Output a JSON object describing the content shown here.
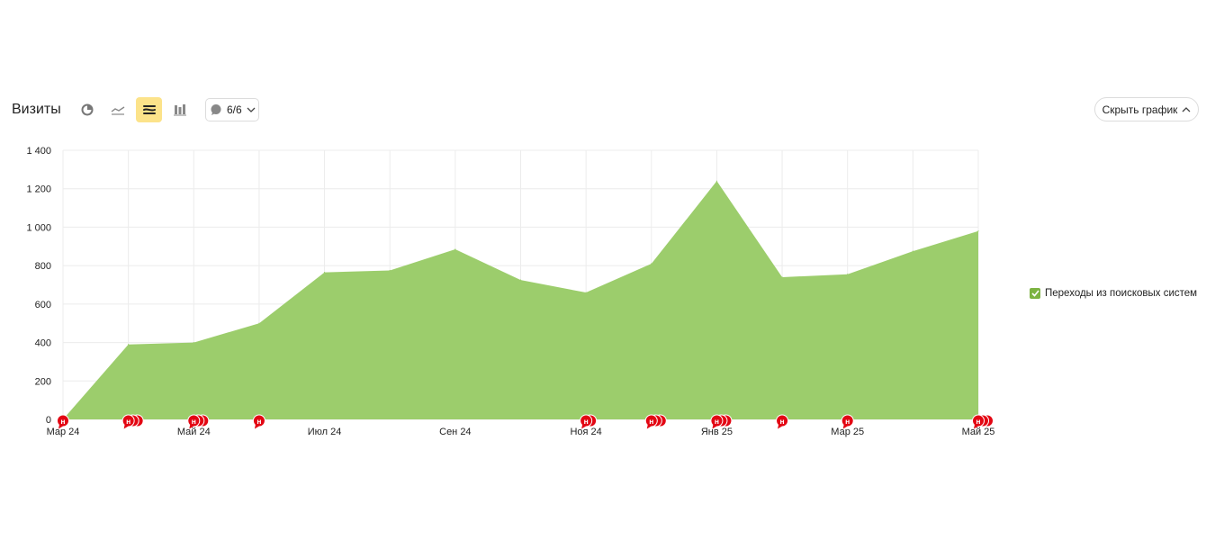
{
  "header": {
    "title": "Визиты",
    "notes_count": "6/6",
    "hide_chart_label": "Скрыть график"
  },
  "toolbar_buttons": [
    {
      "name": "pie-chart-icon",
      "active": false
    },
    {
      "name": "line-chart-icon",
      "active": false
    },
    {
      "name": "area-chart-icon",
      "active": true
    },
    {
      "name": "bar-chart-icon",
      "active": false
    }
  ],
  "colors": {
    "area": "#9ccd6c",
    "accent_active": "#fce38a",
    "marker": "#e30613",
    "legend_check": "#7cb342"
  },
  "chart_data": {
    "type": "area",
    "x": [
      "2024-03",
      "2024-04",
      "2024-05",
      "2024-06",
      "2024-07",
      "2024-08",
      "2024-09",
      "2024-10",
      "2024-11",
      "2024-12",
      "2025-01",
      "2025-02",
      "2025-03",
      "2025-04",
      "2025-05"
    ],
    "x_tick_labels": [
      {
        "index": 0,
        "label": "Мар 24"
      },
      {
        "index": 2,
        "label": "Май 24"
      },
      {
        "index": 4,
        "label": "Июл 24"
      },
      {
        "index": 6,
        "label": "Сен 24"
      },
      {
        "index": 8,
        "label": "Ноя 24"
      },
      {
        "index": 10,
        "label": "Янв 25"
      },
      {
        "index": 12,
        "label": "Мар 25"
      },
      {
        "index": 14,
        "label": "Май 25"
      }
    ],
    "series": [
      {
        "name": "Переходы из поисковых систем",
        "values": [
          0,
          390,
          400,
          500,
          765,
          775,
          885,
          725,
          660,
          810,
          1240,
          740,
          755,
          875,
          980
        ]
      }
    ],
    "y_ticks": [
      "0",
      "200",
      "400",
      "600",
      "800",
      "1 000",
      "1 200",
      "1 400"
    ],
    "ylim": [
      0,
      1400
    ],
    "grid": true,
    "legend_position": "right",
    "annotation_markers": [
      {
        "index": 0,
        "count": 1
      },
      {
        "index": 1,
        "count": 3
      },
      {
        "index": 2,
        "count": 3
      },
      {
        "index": 3,
        "count": 1
      },
      {
        "index": 8,
        "count": 2
      },
      {
        "index": 9,
        "count": 3
      },
      {
        "index": 10,
        "count": 3
      },
      {
        "index": 11,
        "count": 1
      },
      {
        "index": 12,
        "count": 1
      },
      {
        "index": 14,
        "count": 3
      }
    ],
    "marker_letter": "н"
  }
}
